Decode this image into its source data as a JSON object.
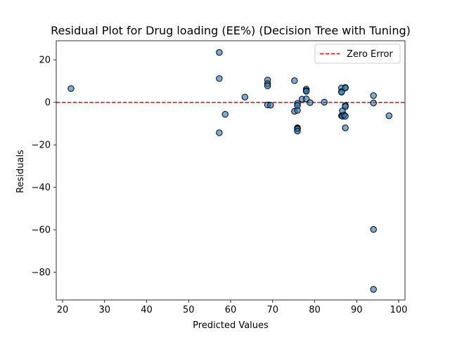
{
  "chart_data": {
    "type": "scatter",
    "title": "Residual Plot for Drug loading (EE%) (Decision Tree with Tuning)",
    "xlabel": "Predicted Values",
    "ylabel": "Residuals",
    "xlim": [
      18.5,
      101.5
    ],
    "ylim": [
      -93,
      29
    ],
    "xticks": [
      20,
      30,
      40,
      50,
      60,
      70,
      80,
      90,
      100
    ],
    "yticks": [
      20,
      0,
      -20,
      -40,
      -60,
      -80
    ],
    "ytick_labels": [
      "20",
      "0",
      "−20",
      "−40",
      "−60",
      "−80"
    ],
    "grid": false,
    "legend_position": "top-right",
    "reference_line": {
      "y": 0,
      "label": "Zero Error",
      "color": "#ff0000",
      "style": "dashed"
    },
    "marker_color": "#1f77b4",
    "marker_edge_color": "#000000",
    "series": [
      {
        "x": [
          22.0,
          57.3,
          57.3,
          57.3,
          58.7,
          63.4,
          68.8,
          68.8,
          68.8,
          68.8,
          69.5,
          75.2,
          75.2,
          75.9,
          75.9,
          75.9,
          75.9,
          75.9,
          75.9,
          75.9,
          77.0,
          78.0,
          78.0,
          78.0,
          78.0,
          78.9,
          82.3,
          86.4,
          86.4,
          86.4,
          86.4,
          86.6,
          86.6,
          87.0,
          87.3,
          87.3,
          87.3,
          87.3,
          87.3,
          87.3,
          94.0,
          94.0,
          94.0,
          94.0,
          97.7
        ],
        "y": [
          6.5,
          23.5,
          11.2,
          -14.3,
          -5.6,
          2.5,
          10.5,
          8.8,
          7.8,
          -1.2,
          -1.3,
          10.2,
          -4.2,
          -0.5,
          -1.5,
          -3.8,
          -12.0,
          -12.2,
          -12.5,
          -13.5,
          1.5,
          6.2,
          5.5,
          5.2,
          1.6,
          -0.1,
          0.1,
          6.8,
          5.0,
          4.8,
          -6.3,
          -4.0,
          -6.5,
          -6.0,
          7.0,
          6.8,
          -1.5,
          -2.0,
          -6.5,
          -12.0,
          3.2,
          -0.3,
          -59.8,
          -88.0,
          -6.3
        ]
      }
    ]
  }
}
